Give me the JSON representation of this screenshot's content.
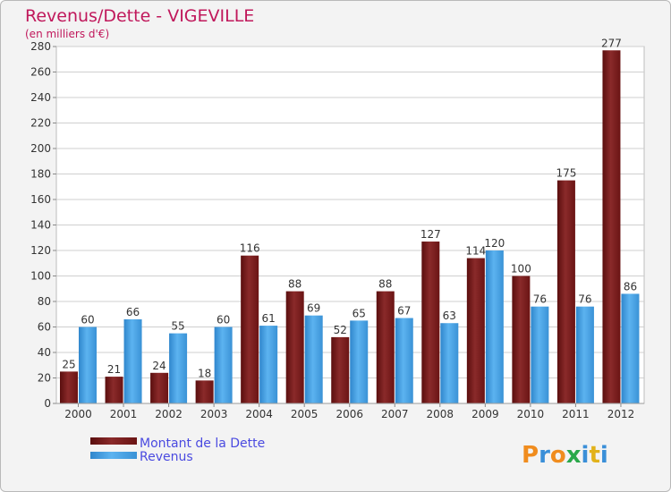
{
  "chart_data": {
    "type": "bar",
    "title": "Revenus/Dette - VIGEVILLE",
    "subtitle": "(en milliers d'€)",
    "categories": [
      "2000",
      "2001",
      "2002",
      "2003",
      "2004",
      "2005",
      "2006",
      "2007",
      "2008",
      "2009",
      "2010",
      "2011",
      "2012"
    ],
    "series": [
      {
        "name": "Montant de la Dette",
        "color": "#7a1c1c",
        "values": [
          25,
          21,
          24,
          18,
          116,
          88,
          52,
          88,
          127,
          114,
          100,
          175,
          277
        ]
      },
      {
        "name": "Revenus",
        "color": "#4aa3e8",
        "values": [
          60,
          66,
          55,
          60,
          61,
          69,
          65,
          67,
          63,
          120,
          76,
          76,
          86
        ]
      }
    ],
    "ylim": [
      0,
      280
    ],
    "yticks": [
      0,
      20,
      40,
      60,
      80,
      100,
      120,
      140,
      160,
      180,
      200,
      220,
      240,
      260,
      280
    ],
    "grid": true,
    "legend_position": "bottom-left"
  },
  "logo": {
    "letters": [
      "P",
      "r",
      "o",
      "x",
      "i",
      "t",
      "i"
    ],
    "colors": [
      "#f08c1e",
      "#3a8fd8",
      "#f08c1e",
      "#2aa84a",
      "#3a8fd8",
      "#e2b21a",
      "#3a8fd8"
    ]
  }
}
